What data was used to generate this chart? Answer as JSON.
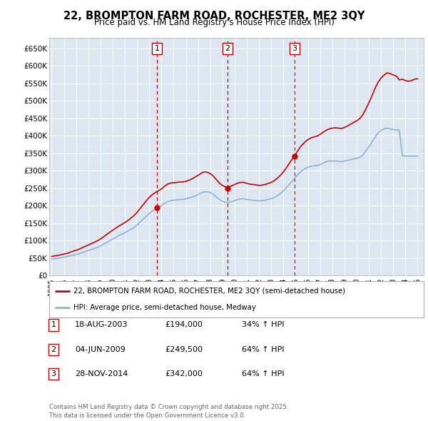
{
  "title": "22, BROMPTON FARM ROAD, ROCHESTER, ME2 3QY",
  "subtitle": "Price paid vs. HM Land Registry's House Price Index (HPI)",
  "bg_color": "#dce6f1",
  "plot_bg_color": "#dce6f1",
  "red_line_color": "#cc0000",
  "blue_line_color": "#8ab4d4",
  "vline_color": "#cc0000",
  "ylim": [
    0,
    680000
  ],
  "yticks": [
    0,
    50000,
    100000,
    150000,
    200000,
    250000,
    300000,
    350000,
    400000,
    450000,
    500000,
    550000,
    600000,
    650000
  ],
  "ytick_labels": [
    "£0",
    "£50K",
    "£100K",
    "£150K",
    "£200K",
    "£250K",
    "£300K",
    "£350K",
    "£400K",
    "£450K",
    "£500K",
    "£550K",
    "£600K",
    "£650K"
  ],
  "xlim_start": 1994.8,
  "xlim_end": 2025.5,
  "purchase_dates": [
    2003.63,
    2009.42,
    2014.91
  ],
  "purchase_prices": [
    194000,
    249500,
    342000
  ],
  "purchase_labels": [
    "1",
    "2",
    "3"
  ],
  "purchase_info": [
    {
      "num": "1",
      "date": "18-AUG-2003",
      "price": "£194,000",
      "hpi": "34% ↑ HPI"
    },
    {
      "num": "2",
      "date": "04-JUN-2009",
      "price": "£249,500",
      "hpi": "64% ↑ HPI"
    },
    {
      "num": "3",
      "date": "28-NOV-2014",
      "price": "£342,000",
      "hpi": "64% ↑ HPI"
    }
  ],
  "legend_label_red": "22, BROMPTON FARM ROAD, ROCHESTER, ME2 3QY (semi-detached house)",
  "legend_label_blue": "HPI: Average price, semi-detached house, Medway",
  "footer": "Contains HM Land Registry data © Crown copyright and database right 2025.\nThis data is licensed under the Open Government Licence v3.0.",
  "hpi_x": [
    1995.0,
    1995.25,
    1995.5,
    1995.75,
    1996.0,
    1996.25,
    1996.5,
    1996.75,
    1997.0,
    1997.25,
    1997.5,
    1997.75,
    1998.0,
    1998.25,
    1998.5,
    1998.75,
    1999.0,
    1999.25,
    1999.5,
    1999.75,
    2000.0,
    2000.25,
    2000.5,
    2000.75,
    2001.0,
    2001.25,
    2001.5,
    2001.75,
    2002.0,
    2002.25,
    2002.5,
    2002.75,
    2003.0,
    2003.25,
    2003.5,
    2003.75,
    2004.0,
    2004.25,
    2004.5,
    2004.75,
    2005.0,
    2005.25,
    2005.5,
    2005.75,
    2006.0,
    2006.25,
    2006.5,
    2006.75,
    2007.0,
    2007.25,
    2007.5,
    2007.75,
    2008.0,
    2008.25,
    2008.5,
    2008.75,
    2009.0,
    2009.25,
    2009.5,
    2009.75,
    2010.0,
    2010.25,
    2010.5,
    2010.75,
    2011.0,
    2011.25,
    2011.5,
    2011.75,
    2012.0,
    2012.25,
    2012.5,
    2012.75,
    2013.0,
    2013.25,
    2013.5,
    2013.75,
    2014.0,
    2014.25,
    2014.5,
    2014.75,
    2015.0,
    2015.25,
    2015.5,
    2015.75,
    2016.0,
    2016.25,
    2016.5,
    2016.75,
    2017.0,
    2017.25,
    2017.5,
    2017.75,
    2018.0,
    2018.25,
    2018.5,
    2018.75,
    2019.0,
    2019.25,
    2019.5,
    2019.75,
    2020.0,
    2020.25,
    2020.5,
    2020.75,
    2021.0,
    2021.25,
    2021.5,
    2021.75,
    2022.0,
    2022.25,
    2022.5,
    2022.75,
    2023.0,
    2023.25,
    2023.5,
    2023.75,
    2024.0,
    2024.25,
    2024.5,
    2024.75,
    2025.0
  ],
  "hpi_blue": [
    48000,
    49000,
    50000,
    51000,
    53000,
    55000,
    57000,
    59000,
    61000,
    63000,
    66000,
    69000,
    72000,
    75000,
    78000,
    81000,
    85000,
    90000,
    95000,
    100000,
    105000,
    110000,
    115000,
    119000,
    123000,
    128000,
    133000,
    138000,
    145000,
    153000,
    162000,
    170000,
    178000,
    185000,
    190000,
    195000,
    200000,
    207000,
    212000,
    215000,
    216000,
    217000,
    218000,
    218000,
    220000,
    222000,
    225000,
    228000,
    232000,
    237000,
    240000,
    240000,
    238000,
    233000,
    225000,
    218000,
    213000,
    210000,
    210000,
    212000,
    215000,
    218000,
    220000,
    220000,
    218000,
    217000,
    216000,
    215000,
    214000,
    215000,
    216000,
    218000,
    220000,
    224000,
    229000,
    235000,
    243000,
    252000,
    262000,
    272000,
    282000,
    292000,
    300000,
    306000,
    310000,
    313000,
    314000,
    315000,
    318000,
    322000,
    326000,
    328000,
    328000,
    328000,
    327000,
    326000,
    328000,
    330000,
    332000,
    334000,
    336000,
    338000,
    345000,
    356000,
    368000,
    382000,
    396000,
    408000,
    415000,
    420000,
    422000,
    420000,
    418000,
    417000,
    416000,
    343000,
    342000,
    342000,
    342000,
    342000,
    342000
  ],
  "hpi_red": [
    55000,
    57000,
    58000,
    60000,
    62000,
    64000,
    67000,
    70000,
    73000,
    76000,
    80000,
    84000,
    88000,
    92000,
    96000,
    100000,
    105000,
    111000,
    118000,
    124000,
    130000,
    136000,
    142000,
    147000,
    152000,
    158000,
    165000,
    172000,
    181000,
    192000,
    203000,
    214000,
    224000,
    232000,
    238000,
    243000,
    248000,
    256000,
    262000,
    265000,
    266000,
    267000,
    268000,
    268000,
    270000,
    273000,
    277000,
    282000,
    287000,
    293000,
    297000,
    296000,
    292000,
    285000,
    275000,
    265000,
    258000,
    254000,
    254000,
    257000,
    261000,
    265000,
    267000,
    267000,
    264000,
    262000,
    261000,
    260000,
    258000,
    259000,
    261000,
    264000,
    267000,
    272000,
    279000,
    287000,
    297000,
    309000,
    322000,
    335000,
    348000,
    361000,
    373000,
    382000,
    389000,
    394000,
    397000,
    399000,
    404000,
    410000,
    416000,
    420000,
    422000,
    423000,
    422000,
    421000,
    424000,
    428000,
    433000,
    438000,
    443000,
    449000,
    460000,
    476000,
    494000,
    514000,
    535000,
    553000,
    565000,
    574000,
    580000,
    578000,
    574000,
    571000,
    560000,
    562000,
    558000,
    556000,
    558000,
    562000,
    563000
  ]
}
